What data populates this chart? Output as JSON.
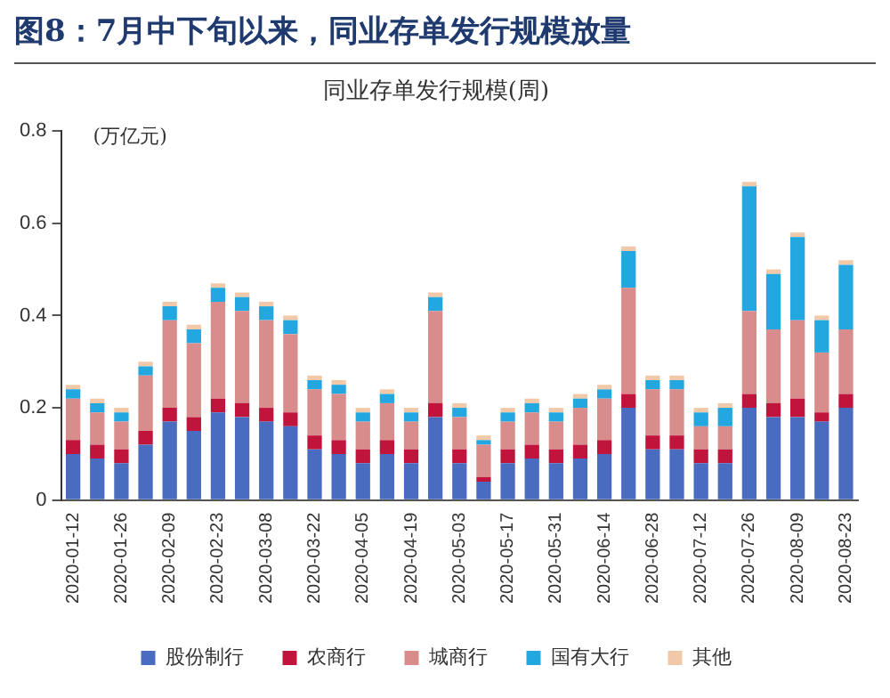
{
  "chart_data": {
    "type": "bar",
    "title": "图8：7月中下旬以来，同业存单发行规模放量",
    "subtitle": "同业存单发行规模(周)",
    "ylabel": "(万亿元)",
    "categories": [
      "2020-01-12",
      null,
      "2020-01-26",
      null,
      "2020-02-09",
      null,
      "2020-02-23",
      null,
      "2020-03-08",
      null,
      "2020-03-22",
      null,
      "2020-04-05",
      null,
      "2020-04-19",
      null,
      "2020-05-03",
      null,
      "2020-05-17",
      null,
      "2020-05-31",
      null,
      "2020-06-14",
      null,
      "2020-06-28",
      null,
      "2020-07-12",
      null,
      "2020-07-26",
      null,
      "2020-08-09",
      null,
      "2020-08-23"
    ],
    "stacked": true,
    "ylim": [
      0,
      0.8
    ],
    "yticks": [
      0,
      0.2,
      0.4,
      0.6,
      0.8
    ],
    "grid": false,
    "legend": "bottom",
    "series": [
      {
        "name": "股份制行",
        "color": "#4a6cc0",
        "values": [
          0.1,
          0.09,
          0.08,
          0.12,
          0.17,
          0.15,
          0.19,
          0.18,
          0.17,
          0.16,
          0.11,
          0.1,
          0.08,
          0.1,
          0.08,
          0.18,
          0.08,
          0.04,
          0.08,
          0.09,
          0.08,
          0.09,
          0.1,
          0.2,
          0.11,
          0.11,
          0.08,
          0.08,
          0.2,
          0.18,
          0.18,
          0.17,
          0.2
        ]
      },
      {
        "name": "农商行",
        "color": "#c0143c",
        "values": [
          0.03,
          0.03,
          0.03,
          0.03,
          0.03,
          0.03,
          0.03,
          0.03,
          0.03,
          0.03,
          0.03,
          0.03,
          0.03,
          0.03,
          0.03,
          0.03,
          0.03,
          0.01,
          0.03,
          0.03,
          0.03,
          0.03,
          0.03,
          0.03,
          0.03,
          0.03,
          0.03,
          0.03,
          0.03,
          0.03,
          0.04,
          0.02,
          0.03
        ]
      },
      {
        "name": "城商行",
        "color": "#d98c8c",
        "values": [
          0.09,
          0.07,
          0.06,
          0.12,
          0.19,
          0.16,
          0.21,
          0.2,
          0.19,
          0.17,
          0.1,
          0.1,
          0.06,
          0.08,
          0.06,
          0.2,
          0.07,
          0.07,
          0.06,
          0.07,
          0.06,
          0.08,
          0.09,
          0.23,
          0.1,
          0.1,
          0.05,
          0.05,
          0.18,
          0.16,
          0.17,
          0.13,
          0.14
        ]
      },
      {
        "name": "国有大行",
        "color": "#22a7e0",
        "values": [
          0.02,
          0.02,
          0.02,
          0.02,
          0.03,
          0.03,
          0.03,
          0.03,
          0.03,
          0.03,
          0.02,
          0.02,
          0.02,
          0.02,
          0.02,
          0.03,
          0.02,
          0.01,
          0.02,
          0.02,
          0.02,
          0.02,
          0.02,
          0.08,
          0.02,
          0.02,
          0.03,
          0.04,
          0.27,
          0.12,
          0.18,
          0.07,
          0.14
        ]
      },
      {
        "name": "其他",
        "color": "#f2c9a8",
        "values": [
          0.01,
          0.01,
          0.01,
          0.01,
          0.01,
          0.01,
          0.01,
          0.01,
          0.01,
          0.01,
          0.01,
          0.01,
          0.01,
          0.01,
          0.01,
          0.01,
          0.01,
          0.01,
          0.01,
          0.01,
          0.01,
          0.01,
          0.01,
          0.01,
          0.01,
          0.01,
          0.01,
          0.01,
          0.01,
          0.01,
          0.01,
          0.01,
          0.01
        ]
      }
    ]
  }
}
